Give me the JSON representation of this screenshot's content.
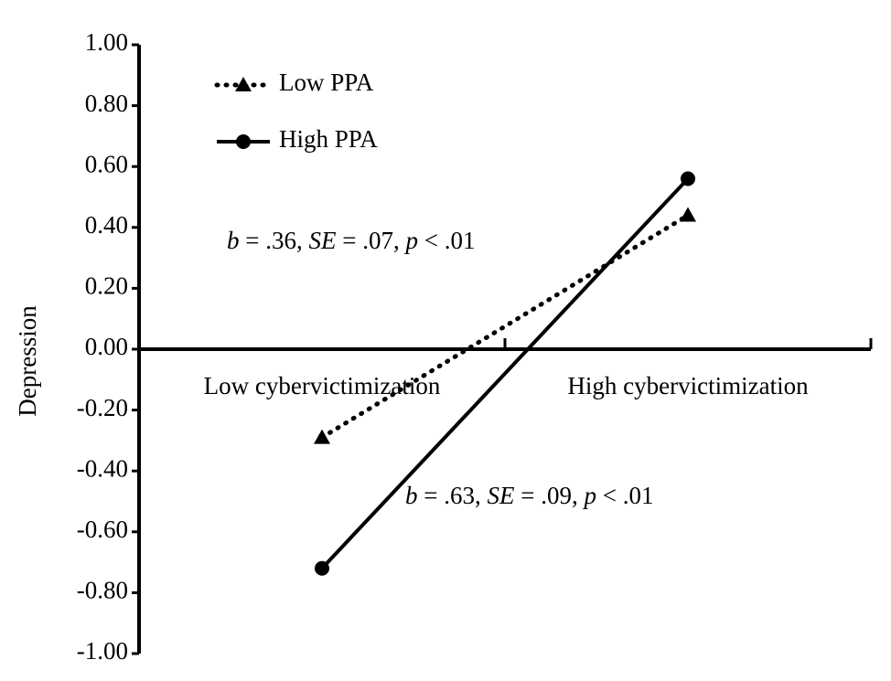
{
  "chart_data": {
    "type": "line",
    "y_label": "Depression",
    "categories": [
      "Low cybervictimization",
      "High cybervictimization"
    ],
    "series": [
      {
        "name": "Low PPA",
        "color": "#000000",
        "style": "dotted",
        "marker": "triangle",
        "values": [
          -0.29,
          0.44
        ]
      },
      {
        "name": "High PPA",
        "color": "#000000",
        "style": "solid",
        "marker": "circle",
        "values": [
          -0.72,
          0.56
        ]
      }
    ],
    "ylim": [
      -1,
      1
    ],
    "yticks": [
      {
        "value": -1,
        "label": "-1.00"
      },
      {
        "value": -0.8,
        "label": "-0.80"
      },
      {
        "value": -0.6,
        "label": "-0.60"
      },
      {
        "value": -0.4,
        "label": "-0.40"
      },
      {
        "value": -0.2,
        "label": "-0.20"
      },
      {
        "value": 0,
        "label": "0.00"
      },
      {
        "value": 0.2,
        "label": "0.20"
      },
      {
        "value": 0.4,
        "label": "0.40"
      },
      {
        "value": 0.6,
        "label": "0.60"
      },
      {
        "value": 0.8,
        "label": "0.80"
      },
      {
        "value": 1,
        "label": "1.00"
      }
    ],
    "legend": "upper left",
    "annotations": [
      [
        "b",
        " = .36, ",
        "SE",
        " = .07, ",
        "p",
        " < .01"
      ],
      [
        "b",
        " = .63, ",
        "SE",
        " = .09, ",
        "p",
        " < .01"
      ]
    ]
  }
}
